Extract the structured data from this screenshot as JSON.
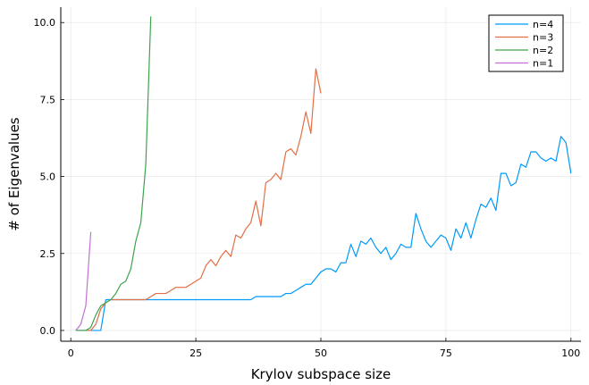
{
  "chart_data": {
    "type": "line",
    "title": "",
    "xlabel": "Krylov subspace size",
    "ylabel": "# of Eigenvalues",
    "xlim": [
      -2,
      102
    ],
    "ylim": [
      -0.35,
      10.5
    ],
    "xticks": [
      0,
      25,
      50,
      75,
      100
    ],
    "xtick_labels": [
      "0",
      "25",
      "50",
      "75",
      "100"
    ],
    "yticks": [
      0,
      2.5,
      5,
      7.5,
      10
    ],
    "ytick_labels": [
      "0.0",
      "2.5",
      "5.0",
      "7.5",
      "10.0"
    ],
    "grid": true,
    "legend_position": "top-right",
    "series": [
      {
        "name": "n=4",
        "color": "#009AFA",
        "x": [
          1,
          2,
          3,
          4,
          5,
          6,
          7,
          8,
          9,
          10,
          11,
          12,
          13,
          14,
          15,
          16,
          17,
          18,
          19,
          20,
          21,
          22,
          23,
          24,
          25,
          26,
          27,
          28,
          29,
          30,
          31,
          32,
          33,
          34,
          35,
          36,
          37,
          38,
          39,
          40,
          41,
          42,
          43,
          44,
          45,
          46,
          47,
          48,
          49,
          50,
          51,
          52,
          53,
          54,
          55,
          56,
          57,
          58,
          59,
          60,
          61,
          62,
          63,
          64,
          65,
          66,
          67,
          68,
          69,
          70,
          71,
          72,
          73,
          74,
          75,
          76,
          77,
          78,
          79,
          80,
          81,
          82,
          83,
          84,
          85,
          86,
          87,
          88,
          89,
          90,
          91,
          92,
          93,
          94,
          95,
          96,
          97,
          98,
          99,
          100
        ],
        "y": [
          0,
          0,
          0,
          0,
          0,
          0,
          1,
          1,
          1,
          1,
          1,
          1,
          1,
          1,
          1,
          1,
          1,
          1,
          1,
          1,
          1,
          1,
          1,
          1,
          1,
          1,
          1,
          1,
          1,
          1,
          1,
          1,
          1,
          1,
          1,
          1,
          1.1,
          1.1,
          1.1,
          1.1,
          1.1,
          1.1,
          1.2,
          1.2,
          1.3,
          1.4,
          1.5,
          1.5,
          1.7,
          1.9,
          2.0,
          2.0,
          1.9,
          2.2,
          2.2,
          2.8,
          2.4,
          2.9,
          2.8,
          3.0,
          2.7,
          2.5,
          2.7,
          2.3,
          2.5,
          2.8,
          2.7,
          2.7,
          3.8,
          3.3,
          2.9,
          2.7,
          2.9,
          3.1,
          3.0,
          2.6,
          3.3,
          3.0,
          3.5,
          3.0,
          3.6,
          4.1,
          4.0,
          4.3,
          3.9,
          5.1,
          5.1,
          4.7,
          4.8,
          5.4,
          5.3,
          5.8,
          5.8,
          5.6,
          5.5,
          5.6,
          5.5,
          6.3,
          6.1,
          5.1
        ]
      },
      {
        "name": "n=3",
        "color": "#E26F46",
        "x": [
          1,
          2,
          3,
          4,
          5,
          6,
          7,
          8,
          9,
          10,
          11,
          12,
          13,
          14,
          15,
          16,
          17,
          18,
          19,
          20,
          21,
          22,
          23,
          24,
          25,
          26,
          27,
          28,
          29,
          30,
          31,
          32,
          33,
          34,
          35,
          36,
          37,
          38,
          39,
          40,
          41,
          42,
          43,
          44,
          45,
          46,
          47,
          48,
          49,
          50
        ],
        "y": [
          0,
          0,
          0,
          0,
          0.2,
          0.7,
          0.9,
          1,
          1,
          1,
          1,
          1,
          1,
          1,
          1,
          1.1,
          1.2,
          1.2,
          1.2,
          1.3,
          1.4,
          1.4,
          1.4,
          1.5,
          1.6,
          1.7,
          2.1,
          2.3,
          2.1,
          2.4,
          2.6,
          2.4,
          3.1,
          3.0,
          3.3,
          3.5,
          4.2,
          3.4,
          4.8,
          4.9,
          5.1,
          4.9,
          5.8,
          5.9,
          5.7,
          6.3,
          7.1,
          6.4,
          8.5,
          7.7
        ]
      },
      {
        "name": "n=2",
        "color": "#3DA44D",
        "x": [
          1,
          2,
          3,
          4,
          5,
          6,
          7,
          8,
          9,
          10,
          11,
          12,
          13,
          14,
          15,
          16
        ],
        "y": [
          0,
          0,
          0,
          0.1,
          0.5,
          0.8,
          0.9,
          1.0,
          1.2,
          1.5,
          1.6,
          2.0,
          2.9,
          3.5,
          5.4,
          10.2
        ]
      },
      {
        "name": "n=1",
        "color": "#C271D2",
        "x": [
          1,
          2,
          3,
          4
        ],
        "y": [
          0,
          0.2,
          0.8,
          3.2
        ]
      }
    ]
  }
}
